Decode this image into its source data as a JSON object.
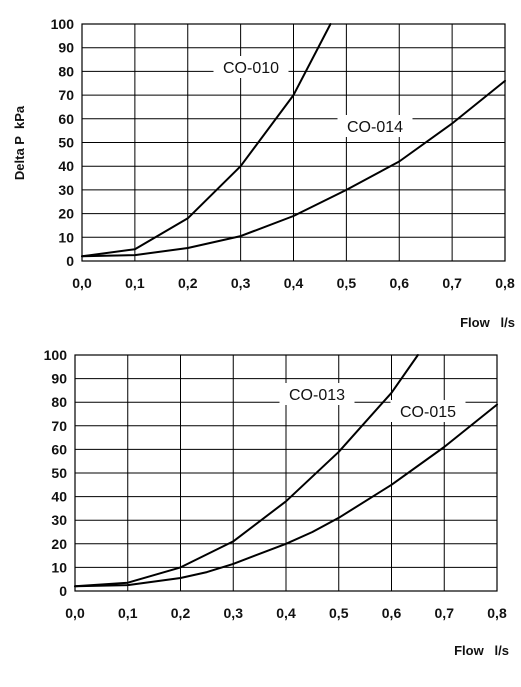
{
  "chart_data": [
    {
      "type": "line",
      "title": "",
      "xlabel": "Flow   l/s",
      "ylabel": "Delta P  kPa",
      "xlim": [
        0,
        0.8
      ],
      "ylim": [
        0,
        100
      ],
      "x_ticks": [
        "0,0",
        "0,1",
        "0,2",
        "0,3",
        "0,4",
        "0,5",
        "0,6",
        "0,7",
        "0,8"
      ],
      "y_ticks": [
        "0",
        "10",
        "20",
        "30",
        "40",
        "50",
        "60",
        "70",
        "80",
        "90",
        "100"
      ],
      "grid": true,
      "series": [
        {
          "name": "CO-010",
          "x": [
            0,
            0.1,
            0.2,
            0.3,
            0.4,
            0.47
          ],
          "y": [
            2,
            5,
            18,
            40,
            70,
            100
          ]
        },
        {
          "name": "CO-014",
          "x": [
            0,
            0.1,
            0.2,
            0.3,
            0.4,
            0.5,
            0.6,
            0.7,
            0.8
          ],
          "y": [
            2,
            2.5,
            5.5,
            10.5,
            19,
            30,
            42,
            58,
            76
          ]
        }
      ]
    },
    {
      "type": "line",
      "title": "",
      "xlabel": "Flow   l/s",
      "ylabel": "",
      "xlim": [
        0,
        0.8
      ],
      "ylim": [
        0,
        100
      ],
      "x_ticks": [
        "0,0",
        "0,1",
        "0,2",
        "0,3",
        "0,4",
        "0,5",
        "0,6",
        "0,7",
        "0,8"
      ],
      "y_ticks": [
        "0",
        "10",
        "20",
        "30",
        "40",
        "50",
        "60",
        "70",
        "80",
        "90",
        "100"
      ],
      "grid": true,
      "series": [
        {
          "name": "CO-013",
          "x": [
            0,
            0.1,
            0.2,
            0.3,
            0.4,
            0.5,
            0.6,
            0.65
          ],
          "y": [
            2,
            3.5,
            10,
            21,
            38,
            59,
            84,
            100
          ]
        },
        {
          "name": "CO-015",
          "x": [
            0,
            0.1,
            0.2,
            0.25,
            0.3,
            0.4,
            0.45,
            0.5,
            0.6,
            0.7,
            0.8
          ],
          "y": [
            2,
            2.5,
            5.5,
            8,
            11.5,
            20,
            25,
            31,
            45,
            61,
            79
          ]
        }
      ]
    }
  ]
}
